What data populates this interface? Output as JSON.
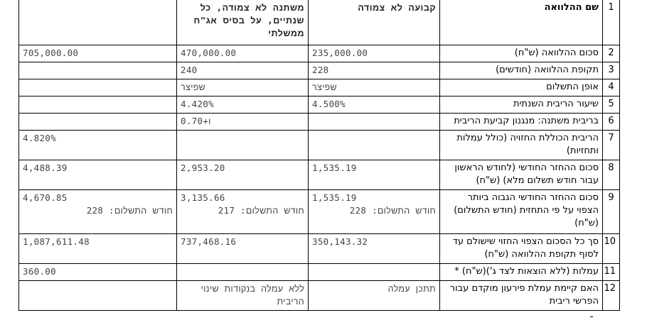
{
  "rows": {
    "r1": {
      "num": "1",
      "label": "שם ההלוואה",
      "c1": "קבועה לא צמודה",
      "c2": "משתנה לא צמודה, כל שנתיים, על בסיס אג\"ח ממשלתי",
      "c3": ""
    },
    "r2": {
      "num": "2",
      "label": "סכום ההלוואה (ש\"ח)",
      "c1": "235,000.00",
      "c2": "470,000.00",
      "c3": "705,000.00"
    },
    "r3": {
      "num": "3",
      "label": "תקופת ההלוואה (חודשים)",
      "c1": "228",
      "c2": "240",
      "c3": ""
    },
    "r4": {
      "num": "4",
      "label": "אופן התשלום",
      "c1": "שפיצר",
      "c2": "שפיצר",
      "c3": ""
    },
    "r5": {
      "num": "5",
      "label": "שיעור הריבית השנתית",
      "c1": "4.500%",
      "c2": "4.420%",
      "c3": ""
    },
    "r6": {
      "num": "6",
      "label": "בריבית משתנה: מנגנון קביעת הריבית",
      "c1": "",
      "c2": "ו+0.70",
      "c3": ""
    },
    "r7": {
      "num": "7",
      "label": "הריבית הכוללת החזויה (כולל עמלות ותחזיות)",
      "c1": "",
      "c2": "",
      "c3": "4.820%"
    },
    "r8": {
      "num": "8",
      "label": "סכום ההחזר החודשי (לחודש הראשון עבור חודש תשלום מלא) (ש\"ח)",
      "c1": "1,535.19",
      "c2": "2,953.20",
      "c3": "4,488.39"
    },
    "r9": {
      "num": "9",
      "label": "סכום ההחזר החודשי הגבוה ביותר הצפוי על פי התחזית (חודש התשלום) (ש\"ח)",
      "c1": "1,535.19",
      "c1_sub": "חודש התשלום: 228",
      "c2": "3,135.66",
      "c2_sub": "חודש התשלום: 217",
      "c3": "4,670.85",
      "c3_sub": "חודש התשלום: 228"
    },
    "r10": {
      "num": "10",
      "label": "סך כל הסכום הצפוי החזוי שישולם עד לסוף תקופת ההלוואה (ש\"ח)",
      "c1": "350,143.32",
      "c2": "737,468.16",
      "c3": "1,087,611.48"
    },
    "r11": {
      "num": "11",
      "label": "עמלות (ללא הוצאות לצד ג')(ש\"ח) *",
      "c1": "",
      "c2": "",
      "c3": "360.00"
    },
    "r12": {
      "num": "12",
      "label": "האם קיימת עמלת פירעון מוקדם עבור הפרשי ריבית",
      "c1": "תתכן עמלה",
      "c2": "ללא עמלה בנקודות שינוי הריבית",
      "c3": ""
    }
  }
}
